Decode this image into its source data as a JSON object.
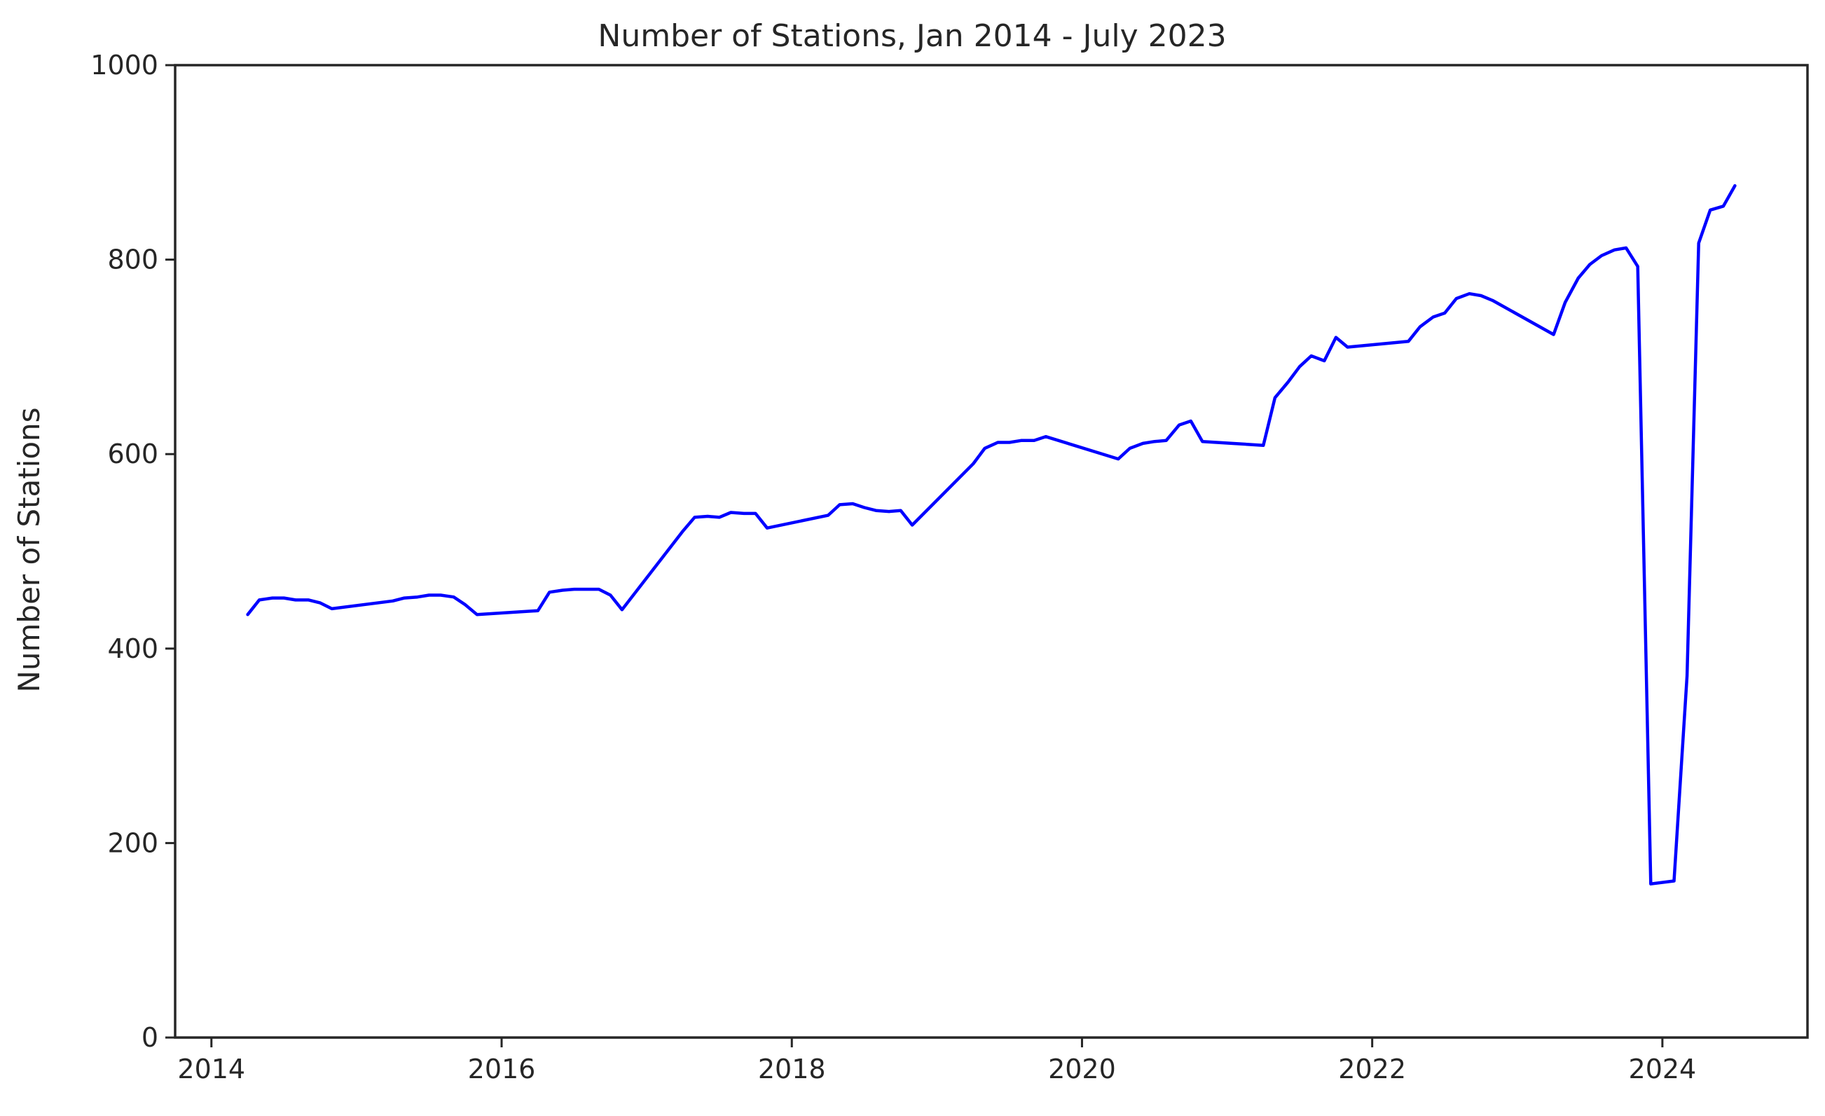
{
  "chart_data": {
    "type": "line",
    "title": "Number of Stations, Jan 2014 - July 2023",
    "xlabel": "",
    "ylabel": "Number of Stations",
    "xlim": [
      2013.75,
      2025.0
    ],
    "ylim": [
      0,
      1000
    ],
    "xticks": [
      2014,
      2016,
      2018,
      2020,
      2022,
      2024
    ],
    "yticks": [
      0,
      200,
      400,
      600,
      800,
      1000
    ],
    "grid": false,
    "legend": "none",
    "color": "#0000ff",
    "series": [
      {
        "x": [
          2014.25,
          2014.33,
          2014.42,
          2014.5,
          2014.58,
          2014.67,
          2014.75,
          2014.83,
          2015.25,
          2015.33,
          2015.42,
          2015.5,
          2015.58,
          2015.67,
          2015.75,
          2015.83,
          2016.25,
          2016.33,
          2016.42,
          2016.5,
          2016.58,
          2016.67,
          2016.75,
          2016.83,
          2017.25,
          2017.33,
          2017.42,
          2017.5,
          2017.58,
          2017.67,
          2017.75,
          2017.83,
          2018.25,
          2018.33,
          2018.42,
          2018.5,
          2018.58,
          2018.67,
          2018.75,
          2018.83,
          2019.25,
          2019.33,
          2019.42,
          2019.5,
          2019.58,
          2019.67,
          2019.75,
          2020.25,
          2020.33,
          2020.42,
          2020.5,
          2020.58,
          2020.67,
          2020.75,
          2020.83,
          2021.25,
          2021.33,
          2021.42,
          2021.5,
          2021.58,
          2021.67,
          2021.75,
          2021.83,
          2022.25,
          2022.33,
          2022.42,
          2022.5,
          2022.58,
          2022.67,
          2022.75,
          2022.83,
          2023.25,
          2023.33,
          2023.42,
          2023.5,
          2023.58,
          2023.67,
          2023.75,
          2023.83,
          2023.92,
          2024.08,
          2024.17,
          2024.25,
          2024.33,
          2024.42,
          2024.5
        ],
        "values": [
          435,
          450,
          452,
          452,
          450,
          450,
          447,
          441,
          449,
          452,
          453,
          455,
          455,
          453,
          445,
          435,
          439,
          458,
          460,
          461,
          461,
          461,
          455,
          440,
          521,
          535,
          536,
          535,
          540,
          539,
          539,
          524,
          537,
          548,
          549,
          545,
          542,
          541,
          542,
          527,
          590,
          606,
          612,
          612,
          614,
          614,
          618,
          595,
          606,
          611,
          613,
          614,
          630,
          634,
          613,
          609,
          658,
          674,
          690,
          701,
          696,
          720,
          710,
          716,
          731,
          741,
          745,
          760,
          765,
          763,
          758,
          723,
          756,
          781,
          795,
          804,
          810,
          812,
          793,
          158,
          161,
          372,
          817,
          851,
          855,
          876
        ]
      }
    ]
  }
}
